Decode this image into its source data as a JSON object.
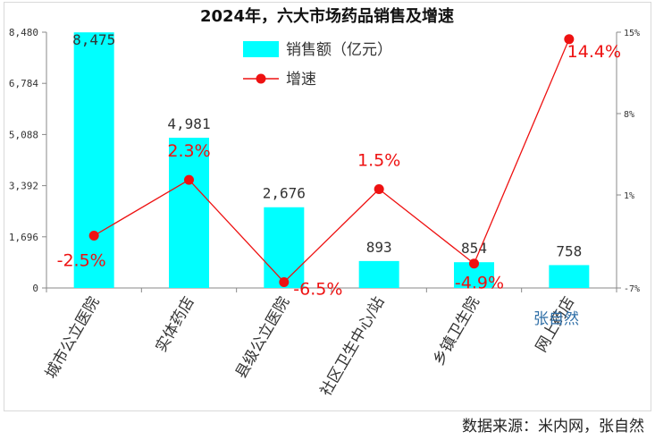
{
  "chart_data": {
    "type": "bar",
    "title": "2024年，六大市场药品销售及增速",
    "categories": [
      "城市公立医院",
      "实体药店",
      "县级公立医院",
      "社区卫生中心/站",
      "乡镇卫生院",
      "网上药店"
    ],
    "series": [
      {
        "name": "销售额（亿元）",
        "type": "bar",
        "axis": "left",
        "color": "#00ffff",
        "values": [
          8475,
          4981,
          2676,
          893,
          854,
          758
        ],
        "labels": [
          "8,475",
          "4,981",
          "2,676",
          "893",
          "854",
          "758"
        ]
      },
      {
        "name": "增速",
        "type": "line",
        "axis": "right",
        "color": "#ee1111",
        "values": [
          -2.5,
          2.3,
          -6.5,
          1.5,
          -4.9,
          14.4
        ],
        "labels": [
          "-2.5%",
          "2.3%",
          "-6.5%",
          "1.5%",
          "-4.9%",
          "14.4%"
        ]
      }
    ],
    "left_axis": {
      "ylim": [
        0,
        8480
      ],
      "ticks": [
        0,
        1696,
        3392,
        5088,
        6784,
        8480
      ],
      "tick_labels": [
        "0",
        "1,696",
        "3,392",
        "5,088",
        "6,784",
        "8,480"
      ]
    },
    "right_axis": {
      "ylim": [
        -7,
        15
      ],
      "ticks": [
        -7,
        1,
        8,
        15
      ],
      "tick_labels": [
        "-7%",
        "1%",
        "8%",
        "15%"
      ]
    },
    "legend": {
      "position": "top-center",
      "entries": [
        "销售额（亿元）",
        "增速"
      ]
    },
    "source": "数据来源：米内网，张自然",
    "watermark": "张自然"
  }
}
